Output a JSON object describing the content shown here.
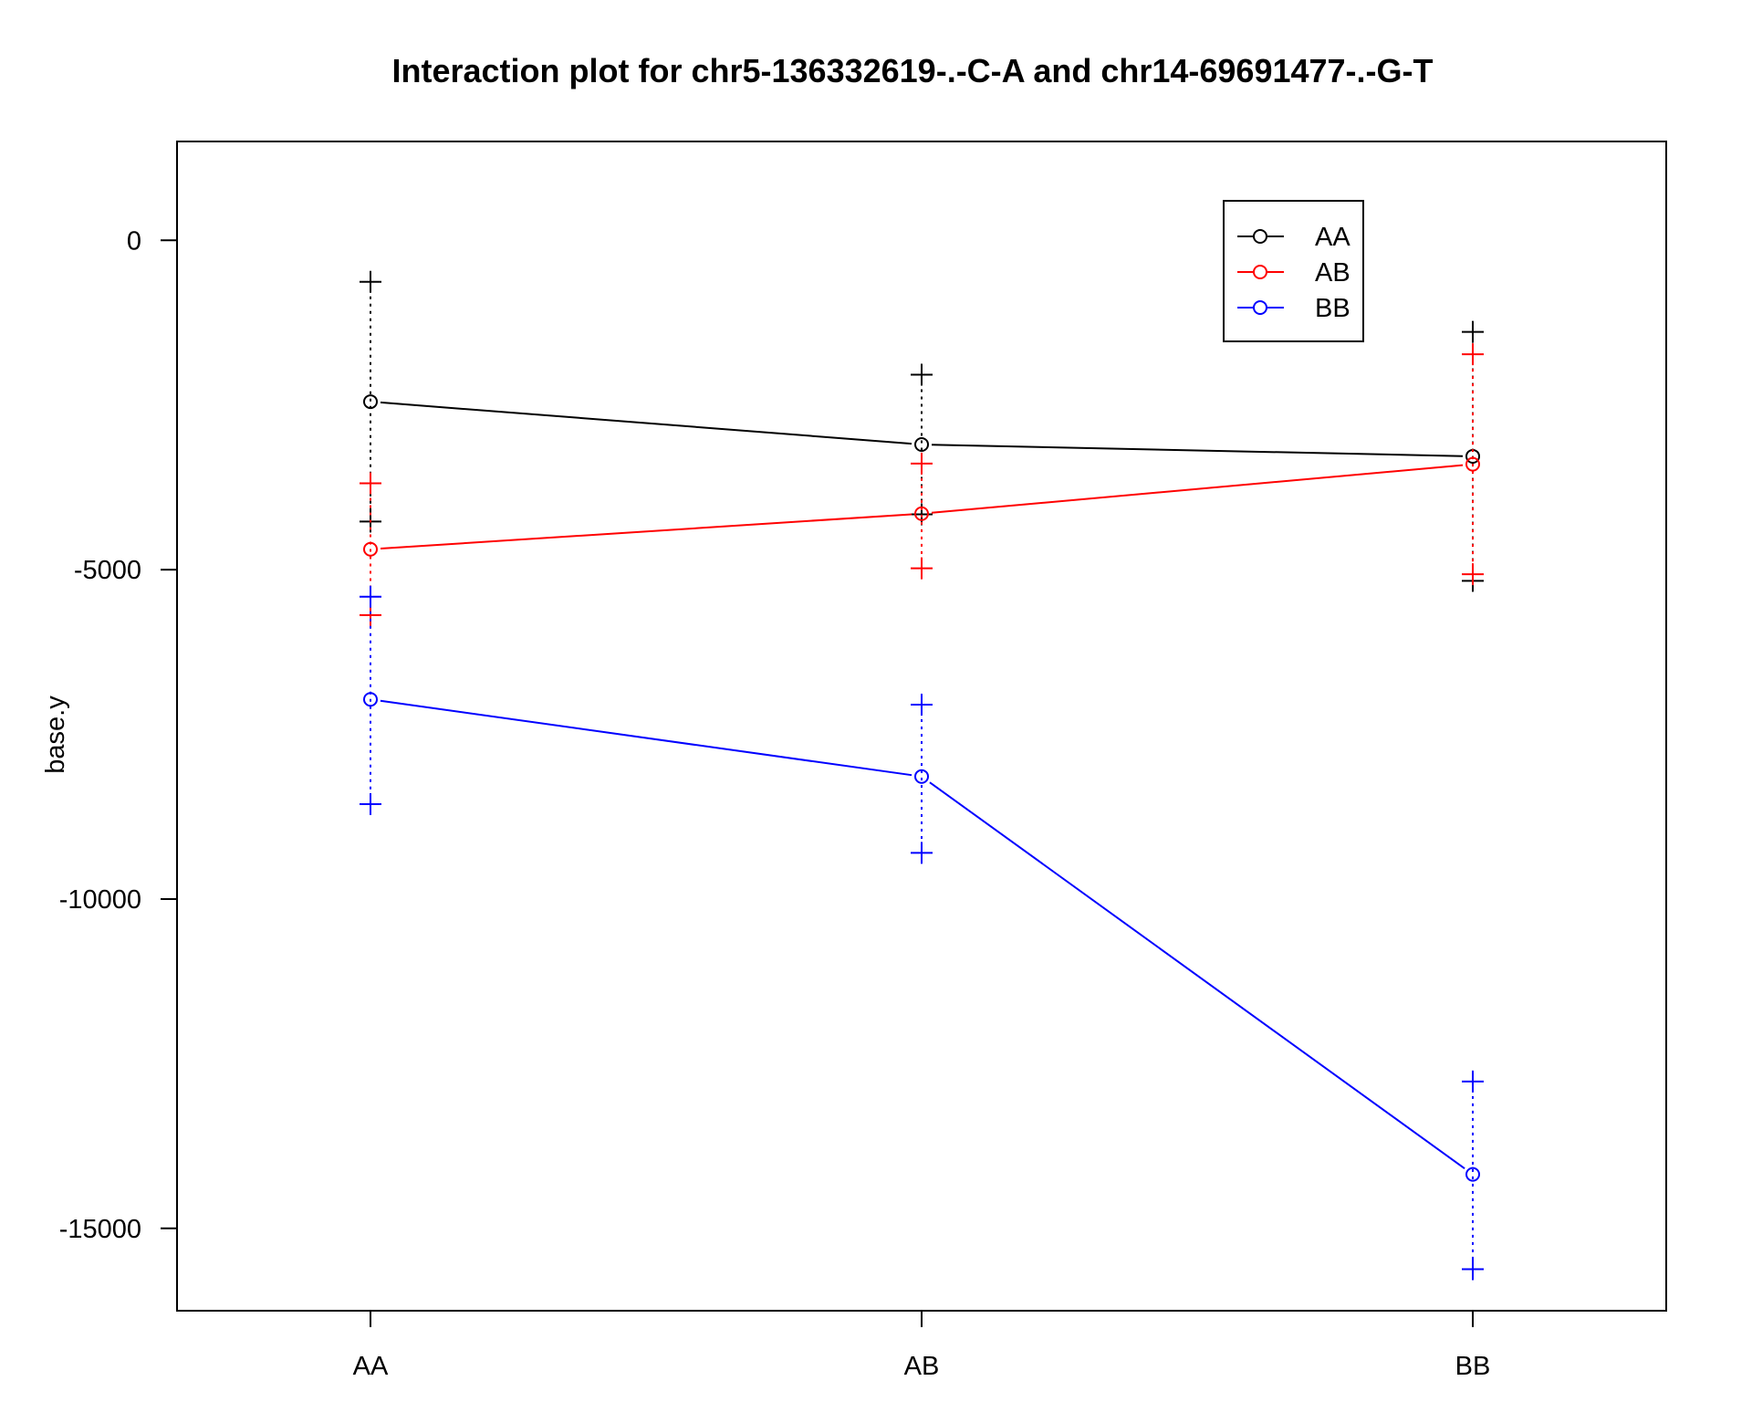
{
  "chart_data": {
    "type": "line",
    "title": "Interaction plot for chr5-136332619-.-C-A and chr14-69691477-.-G-T",
    "xlabel": "",
    "ylabel": "base.y",
    "categories": [
      "AA",
      "AB",
      "BB"
    ],
    "ylim": [
      -16250,
      1500
    ],
    "yticks": [
      0,
      -5000,
      -10000,
      -15000
    ],
    "ytick_labels": [
      "0",
      "-5000",
      "-10000",
      "-15000"
    ],
    "legend_position": "top-right",
    "series": [
      {
        "name": "AA",
        "color": "#000000",
        "values": [
          -2450,
          -3100,
          -3280
        ],
        "upper": [
          -630,
          -2040,
          -1390
        ],
        "lower": [
          -4270,
          -4160,
          -5170
        ]
      },
      {
        "name": "AB",
        "color": "#ff0000",
        "values": [
          -4690,
          -4150,
          -3400
        ],
        "upper": [
          -3690,
          -3390,
          -1730
        ],
        "lower": [
          -5690,
          -4980,
          -5070
        ]
      },
      {
        "name": "BB",
        "color": "#0000ff",
        "values": [
          -6970,
          -8140,
          -14180
        ],
        "upper": [
          -5410,
          -7050,
          -12770
        ],
        "lower": [
          -8560,
          -9300,
          -15620
        ]
      }
    ]
  }
}
